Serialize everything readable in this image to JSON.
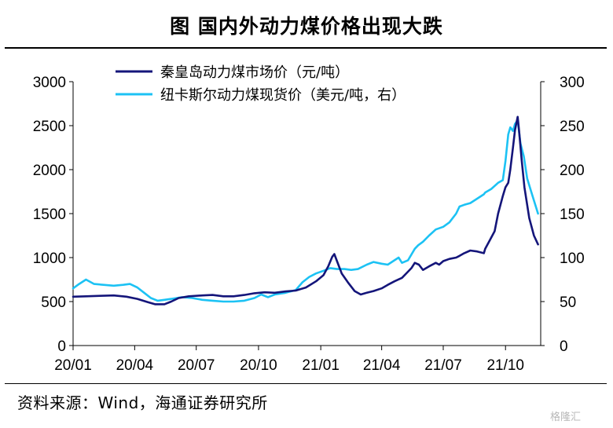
{
  "title": "图  国内外动力煤价格出现大跌",
  "source": "资料来源：Wind，海通证券研究所",
  "watermark": "格隆汇",
  "chart_data": {
    "type": "line",
    "x_tick_labels": [
      "20/01",
      "20/04",
      "20/07",
      "20/10",
      "21/01",
      "21/04",
      "21/07",
      "21/10"
    ],
    "x_range": [
      "2020-01-01",
      "2021-11-22"
    ],
    "left_axis": {
      "range": [
        0,
        3000
      ],
      "ticks": [
        0,
        500,
        1000,
        1500,
        2000,
        2500,
        3000
      ]
    },
    "right_axis": {
      "range": [
        0,
        300
      ],
      "ticks": [
        0,
        50,
        100,
        150,
        200,
        250,
        300
      ]
    },
    "legend_position": "top-center",
    "grid": false,
    "series": [
      {
        "name": "秦皇岛动力煤市场价（元/吨）",
        "axis": "left",
        "color": "#14157a",
        "points": [
          [
            "2020-01-01",
            555
          ],
          [
            "2020-01-20",
            560
          ],
          [
            "2020-02-10",
            565
          ],
          [
            "2020-03-01",
            570
          ],
          [
            "2020-03-20",
            555
          ],
          [
            "2020-04-05",
            530
          ],
          [
            "2020-04-20",
            495
          ],
          [
            "2020-05-01",
            470
          ],
          [
            "2020-05-15",
            470
          ],
          [
            "2020-05-25",
            500
          ],
          [
            "2020-06-05",
            540
          ],
          [
            "2020-06-20",
            560
          ],
          [
            "2020-07-10",
            570
          ],
          [
            "2020-07-25",
            575
          ],
          [
            "2020-08-10",
            560
          ],
          [
            "2020-08-25",
            560
          ],
          [
            "2020-09-10",
            575
          ],
          [
            "2020-09-25",
            595
          ],
          [
            "2020-10-10",
            605
          ],
          [
            "2020-10-25",
            600
          ],
          [
            "2020-11-10",
            615
          ],
          [
            "2020-11-25",
            625
          ],
          [
            "2020-12-10",
            660
          ],
          [
            "2020-12-25",
            730
          ],
          [
            "2021-01-05",
            800
          ],
          [
            "2021-01-12",
            900
          ],
          [
            "2021-01-18",
            1010
          ],
          [
            "2021-01-21",
            1040
          ],
          [
            "2021-01-25",
            960
          ],
          [
            "2021-02-01",
            820
          ],
          [
            "2021-02-10",
            720
          ],
          [
            "2021-02-20",
            620
          ],
          [
            "2021-03-01",
            580
          ],
          [
            "2021-03-10",
            600
          ],
          [
            "2021-03-20",
            620
          ],
          [
            "2021-04-01",
            650
          ],
          [
            "2021-04-10",
            690
          ],
          [
            "2021-04-20",
            730
          ],
          [
            "2021-05-01",
            770
          ],
          [
            "2021-05-10",
            840
          ],
          [
            "2021-05-15",
            880
          ],
          [
            "2021-05-20",
            940
          ],
          [
            "2021-05-26",
            920
          ],
          [
            "2021-06-01",
            860
          ],
          [
            "2021-06-10",
            900
          ],
          [
            "2021-06-20",
            940
          ],
          [
            "2021-06-25",
            920
          ],
          [
            "2021-07-01",
            960
          ],
          [
            "2021-07-10",
            985
          ],
          [
            "2021-07-20",
            1000
          ],
          [
            "2021-07-25",
            1020
          ],
          [
            "2021-08-01",
            1050
          ],
          [
            "2021-08-10",
            1080
          ],
          [
            "2021-08-20",
            1070
          ],
          [
            "2021-08-30",
            1050
          ],
          [
            "2021-09-01",
            1100
          ],
          [
            "2021-09-08",
            1200
          ],
          [
            "2021-09-15",
            1300
          ],
          [
            "2021-09-20",
            1500
          ],
          [
            "2021-09-27",
            1700
          ],
          [
            "2021-10-01",
            1800
          ],
          [
            "2021-10-05",
            1850
          ],
          [
            "2021-10-08",
            2000
          ],
          [
            "2021-10-12",
            2250
          ],
          [
            "2021-10-15",
            2450
          ],
          [
            "2021-10-19",
            2600
          ],
          [
            "2021-10-21",
            2450
          ],
          [
            "2021-10-25",
            2100
          ],
          [
            "2021-10-29",
            1800
          ],
          [
            "2021-11-05",
            1450
          ],
          [
            "2021-11-12",
            1250
          ],
          [
            "2021-11-18",
            1150
          ]
        ]
      },
      {
        "name": "纽卡斯尔动力煤现货价（美元/吨，右）",
        "axis": "right",
        "color": "#1cc2f4",
        "points": [
          [
            "2020-01-01",
            65
          ],
          [
            "2020-01-10",
            70
          ],
          [
            "2020-01-20",
            75
          ],
          [
            "2020-02-01",
            70
          ],
          [
            "2020-02-15",
            69
          ],
          [
            "2020-03-01",
            68
          ],
          [
            "2020-03-15",
            69
          ],
          [
            "2020-03-25",
            70
          ],
          [
            "2020-04-05",
            66
          ],
          [
            "2020-04-15",
            60
          ],
          [
            "2020-04-25",
            54
          ],
          [
            "2020-05-05",
            51
          ],
          [
            "2020-05-15",
            52
          ],
          [
            "2020-05-25",
            53
          ],
          [
            "2020-06-10",
            55
          ],
          [
            "2020-06-25",
            54
          ],
          [
            "2020-07-10",
            52
          ],
          [
            "2020-07-25",
            51
          ],
          [
            "2020-08-10",
            50
          ],
          [
            "2020-08-25",
            50
          ],
          [
            "2020-09-10",
            51
          ],
          [
            "2020-09-25",
            54
          ],
          [
            "2020-10-05",
            58
          ],
          [
            "2020-10-15",
            55
          ],
          [
            "2020-10-25",
            58
          ],
          [
            "2020-11-10",
            60
          ],
          [
            "2020-11-25",
            63
          ],
          [
            "2020-12-05",
            72
          ],
          [
            "2020-12-15",
            78
          ],
          [
            "2020-12-25",
            82
          ],
          [
            "2021-01-05",
            85
          ],
          [
            "2021-01-15",
            88
          ],
          [
            "2021-01-25",
            87
          ],
          [
            "2021-02-05",
            87
          ],
          [
            "2021-02-15",
            86
          ],
          [
            "2021-02-25",
            87
          ],
          [
            "2021-03-10",
            92
          ],
          [
            "2021-03-20",
            95
          ],
          [
            "2021-04-01",
            93
          ],
          [
            "2021-04-10",
            92
          ],
          [
            "2021-04-20",
            97
          ],
          [
            "2021-04-26",
            100
          ],
          [
            "2021-05-01",
            94
          ],
          [
            "2021-05-10",
            97
          ],
          [
            "2021-05-20",
            110
          ],
          [
            "2021-05-25",
            114
          ],
          [
            "2021-06-01",
            118
          ],
          [
            "2021-06-10",
            125
          ],
          [
            "2021-06-20",
            132
          ],
          [
            "2021-07-01",
            135
          ],
          [
            "2021-07-10",
            140
          ],
          [
            "2021-07-20",
            150
          ],
          [
            "2021-07-25",
            158
          ],
          [
            "2021-08-01",
            160
          ],
          [
            "2021-08-10",
            162
          ],
          [
            "2021-08-20",
            167
          ],
          [
            "2021-08-30",
            172
          ],
          [
            "2021-09-01",
            174
          ],
          [
            "2021-09-10",
            178
          ],
          [
            "2021-09-20",
            185
          ],
          [
            "2021-09-27",
            188
          ],
          [
            "2021-10-01",
            210
          ],
          [
            "2021-10-05",
            240
          ],
          [
            "2021-10-08",
            248
          ],
          [
            "2021-10-12",
            244
          ],
          [
            "2021-10-15",
            252
          ],
          [
            "2021-10-19",
            256
          ],
          [
            "2021-10-23",
            230
          ],
          [
            "2021-10-28",
            215
          ],
          [
            "2021-11-02",
            190
          ],
          [
            "2021-11-08",
            175
          ],
          [
            "2021-11-14",
            160
          ],
          [
            "2021-11-18",
            150
          ]
        ]
      }
    ]
  }
}
